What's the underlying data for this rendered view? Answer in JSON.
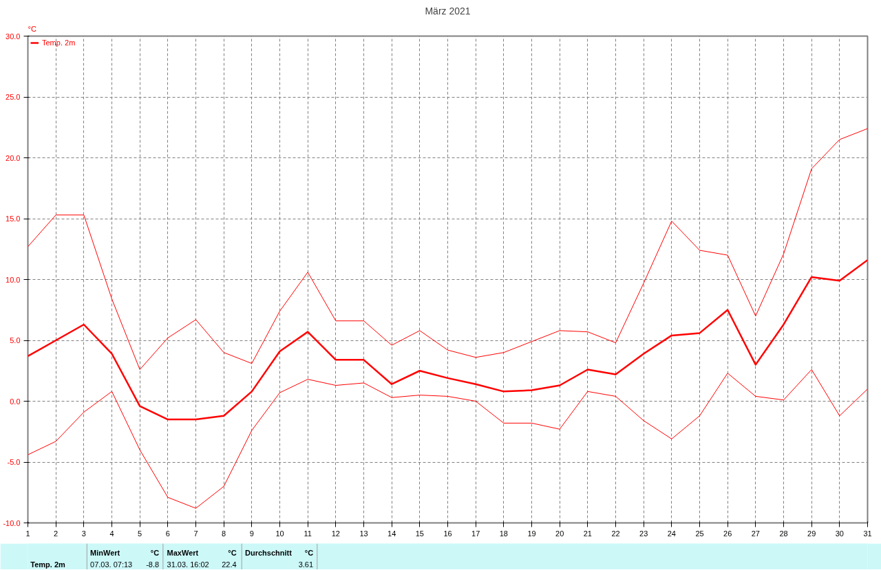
{
  "chart_data": {
    "type": "line",
    "title": "März 2021",
    "x": [
      1,
      2,
      3,
      4,
      5,
      6,
      7,
      8,
      9,
      10,
      11,
      12,
      13,
      14,
      15,
      16,
      17,
      18,
      19,
      20,
      21,
      22,
      23,
      24,
      25,
      26,
      27,
      28,
      29,
      30,
      31
    ],
    "series": [
      {
        "name": "Temp. 2m",
        "color": "#ff0000",
        "values": [
          3.7,
          5.0,
          6.3,
          3.9,
          -0.4,
          -1.5,
          -1.5,
          -1.2,
          0.8,
          4.1,
          5.7,
          3.4,
          3.4,
          1.4,
          2.5,
          1.9,
          1.4,
          0.8,
          0.9,
          1.3,
          2.6,
          2.2,
          3.9,
          5.4,
          5.6,
          7.5,
          3.0,
          6.3,
          10.2,
          9.9,
          11.6
        ]
      },
      {
        "color": "#ff0000",
        "values": [
          12.7,
          15.3,
          15.3,
          8.4,
          2.6,
          5.2,
          6.7,
          4.0,
          3.1,
          7.4,
          10.6,
          6.6,
          6.6,
          4.6,
          5.8,
          4.2,
          3.6,
          4.0,
          4.9,
          5.8,
          5.7,
          4.8,
          9.7,
          14.8,
          12.4,
          12.0,
          7.0,
          12.1,
          19.1,
          21.5,
          22.4
        ]
      },
      {
        "color": "#ff0000",
        "values": [
          -4.4,
          -3.3,
          -0.9,
          0.8,
          -4.0,
          -7.9,
          -8.8,
          -7.0,
          -2.4,
          0.7,
          1.8,
          1.3,
          1.5,
          0.3,
          0.5,
          0.4,
          0.0,
          -1.8,
          -1.8,
          -2.3,
          0.8,
          0.4,
          -1.6,
          -3.1,
          -1.2,
          2.3,
          0.4,
          0.1,
          2.6,
          -1.2,
          1.0
        ]
      }
    ],
    "xlim": [
      1,
      31
    ],
    "xticks": [
      1,
      2,
      3,
      4,
      5,
      6,
      7,
      8,
      9,
      10,
      11,
      12,
      13,
      14,
      15,
      16,
      17,
      18,
      19,
      20,
      21,
      22,
      23,
      24,
      25,
      26,
      27,
      28,
      29,
      30,
      31
    ],
    "ylim": [
      -10,
      30
    ],
    "yticks": [
      {
        "value": -10,
        "label": "-10.0"
      },
      {
        "value": -5,
        "label": "-5.0"
      },
      {
        "value": 0,
        "label": "0.0"
      },
      {
        "value": 5,
        "label": "5.0"
      },
      {
        "value": 10,
        "label": "10.0"
      },
      {
        "value": 15,
        "label": "15.0"
      },
      {
        "value": 20,
        "label": "20.0"
      },
      {
        "value": 25,
        "label": "25.0"
      },
      {
        "value": 30,
        "label": "30.0"
      }
    ],
    "grid": true,
    "legend": "top left",
    "line_style": "solid",
    "marker": "none",
    "annotations": [
      "°C",
      "Temp. 2m",
      "MinWert",
      "°C",
      "07.03.  07:13",
      "-8.8",
      "MaxWert",
      "°C",
      "31.03.  16:02",
      "22.4",
      "Durchschnitt",
      "°C",
      "3.61"
    ]
  }
}
